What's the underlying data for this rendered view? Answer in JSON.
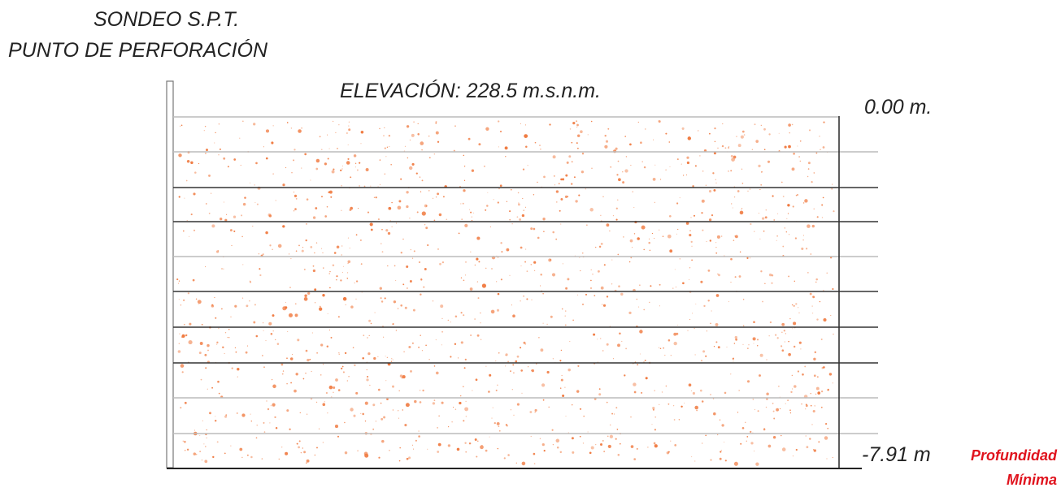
{
  "header": {
    "title": "SONDEO S.P.T.",
    "subtitle": "PUNTO DE PERFORACIÓN"
  },
  "profile": {
    "elevation_label": "ELEVACIÓN: 228.5 m.s.n.m.",
    "top_depth_label": "0.00 m.",
    "bottom_depth_label": "-7.91 m",
    "depth_note": "Profundidad Mínima",
    "fill_color": "#f07a40",
    "line_colors": {
      "dark": "#333333",
      "light": "#bbbbbb"
    }
  }
}
